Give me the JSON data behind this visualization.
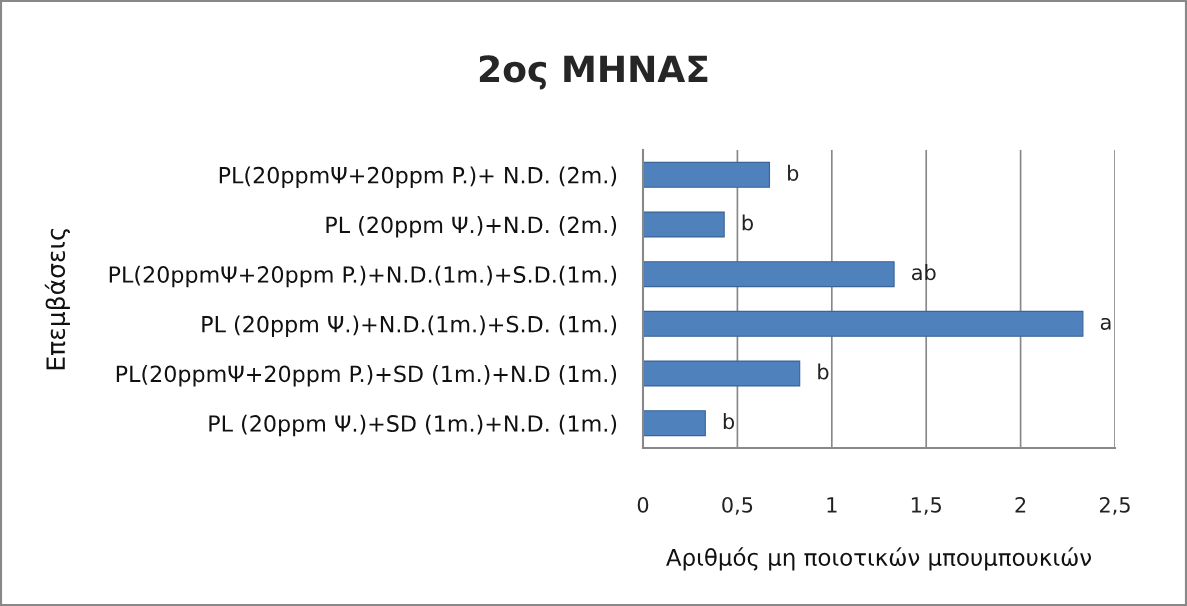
{
  "chart_data": {
    "type": "bar",
    "orientation": "horizontal",
    "title": "2ος ΜΗΝΑΣ",
    "xlabel": "Αριθμός μη ποιοτικών μπουμπουκιών",
    "ylabel": "Επεμβάσεις",
    "categories": [
      "PL(20ppmΨ+20ppm P.)+ N.D. (2m.)",
      "PL (20ppm Ψ.)+N.D. (2m.)",
      "PL(20ppmΨ+20ppm P.)+N.D.(1m.)+S.D.(1m.)",
      "PL (20ppm Ψ.)+N.D.(1m.)+S.D. (1m.)",
      "PL(20ppmΨ+20ppm P.)+SD (1m.)+N.D (1m.)",
      "PL (20ppm Ψ.)+SD (1m.)+N.D. (1m.)"
    ],
    "values": [
      0.67,
      0.43,
      1.33,
      2.33,
      0.83,
      0.33
    ],
    "color": "#4f81bd",
    "xlim": [
      0,
      2.5
    ],
    "xticks": [
      0,
      {
        "value": 0.5,
        "label": "0,5"
      },
      1,
      {
        "value": 1.5,
        "label": "1,5"
      },
      2,
      {
        "value": 2.5,
        "label": "2,5"
      }
    ],
    "grid": "x",
    "annotations": [
      {
        "text": "b",
        "x": 0.67,
        "y": "PL(20ppmΨ+20ppm P.)+ N.D. (2m.)"
      },
      {
        "text": "b",
        "x": 0.43,
        "y": "PL (20ppm Ψ.)+N.D. (2m.)"
      },
      {
        "text": "ab",
        "x": 1.33,
        "y": "PL(20ppmΨ+20ppm P.)+N.D.(1m.)+S.D.(1m.)"
      },
      {
        "text": "a",
        "x": 2.33,
        "y": "PL (20ppm Ψ.)+N.D.(1m.)+S.D. (1m.)"
      },
      {
        "text": "b",
        "x": 0.83,
        "y": "PL(20ppmΨ+20ppm P.)+SD (1m.)+N.D (1m.)"
      },
      {
        "text": "b",
        "x": 0.33,
        "y": "PL (20ppm Ψ.)+SD (1m.)+N.D. (1m.)"
      }
    ]
  }
}
